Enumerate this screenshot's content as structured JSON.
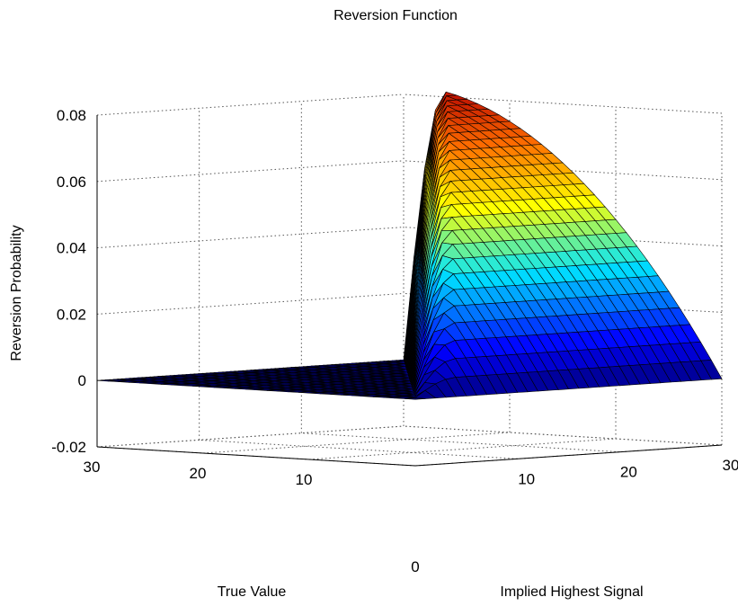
{
  "chart_data": {
    "type": "surface",
    "title": "Reversion Function",
    "xlabel": "True Value",
    "ylabel": "Implied Highest Signal",
    "zlabel": "Reversion Probability",
    "x_ticks": [
      10,
      20,
      30
    ],
    "y_ticks": [
      10,
      20,
      30
    ],
    "y_origin_label": "0",
    "z_ticks": [
      -0.02,
      0,
      0.02,
      0.04,
      0.06,
      0.08
    ],
    "z_tick_labels": [
      "-0.02",
      "0",
      "0.02",
      "0.04",
      "0.06",
      "0.08"
    ],
    "xlim": [
      0,
      30
    ],
    "ylim": [
      0,
      30
    ],
    "zlim": [
      -0.02,
      0.085
    ],
    "grid": true,
    "colormap": "jet",
    "surface": {
      "grid_n": 31,
      "support": "implied highest signal >= true value",
      "peak_value": 0.083,
      "peak_location": {
        "true_value": 30,
        "implied_highest_signal": 30
      },
      "zero_region_value": 0
    }
  }
}
